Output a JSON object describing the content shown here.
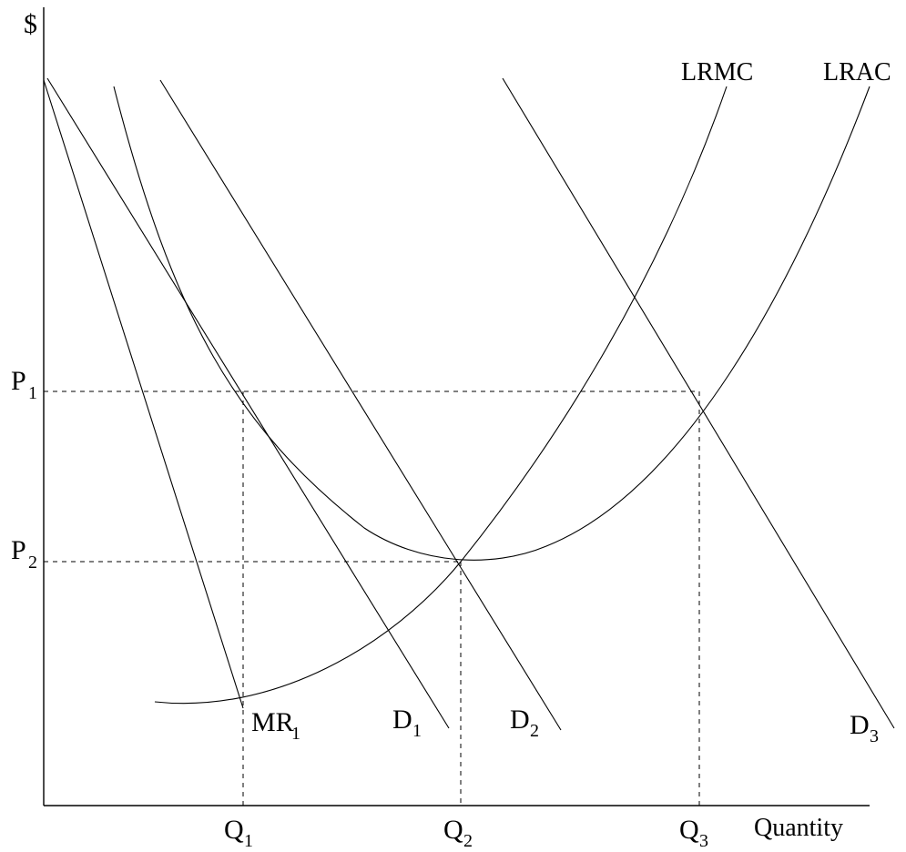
{
  "axes": {
    "y_label": "$",
    "x_label": "Quantity"
  },
  "prices": [
    {
      "main": "P",
      "sub": "1"
    },
    {
      "main": "P",
      "sub": "2"
    }
  ],
  "quantities": [
    {
      "main": "Q",
      "sub": "1"
    },
    {
      "main": "Q",
      "sub": "2"
    },
    {
      "main": "Q",
      "sub": "3"
    }
  ],
  "curves": {
    "lrmc": "LRMC",
    "lrac": "LRAC",
    "mr1": {
      "main": "MR",
      "sub": "1"
    },
    "d1": {
      "main": "D",
      "sub": "1"
    },
    "d2": {
      "main": "D",
      "sub": "2"
    },
    "d3": {
      "main": "D",
      "sub": "3"
    }
  }
}
